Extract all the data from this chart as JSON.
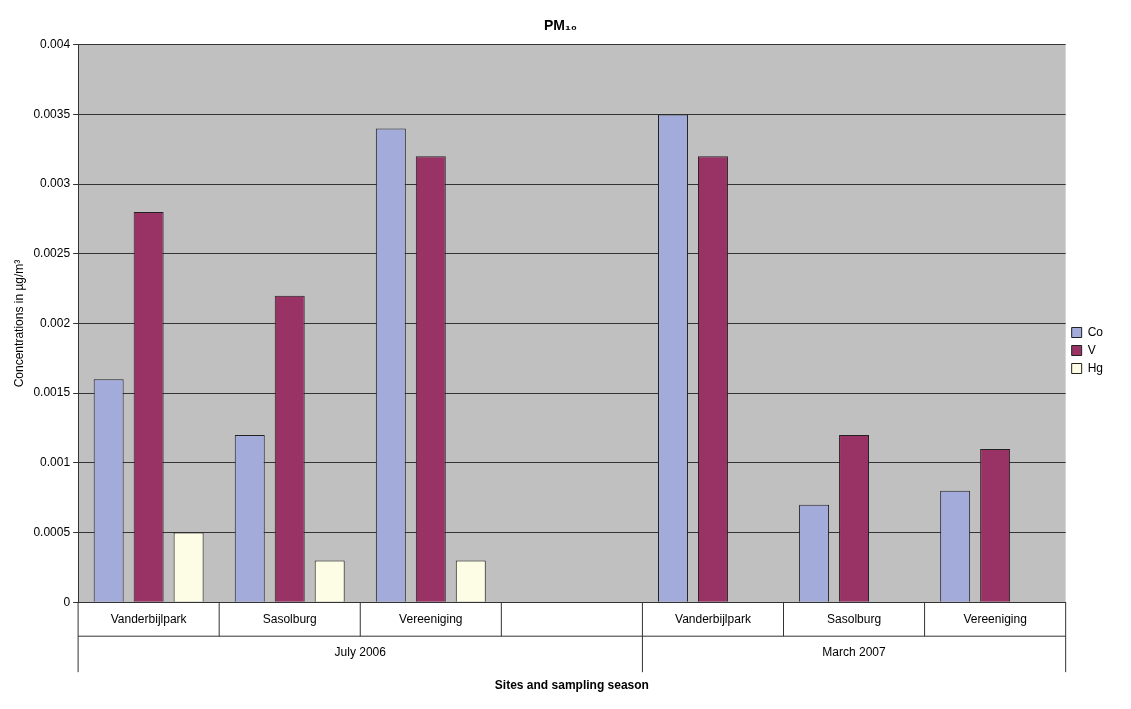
{
  "chart_data": {
    "type": "bar",
    "title": "PM₁₀",
    "xlabel": "Sites and sampling season",
    "ylabel": "Concentrations in µg/m³",
    "categories": [
      "Vanderbijlpark",
      "Sasolburg",
      "Vereeniging",
      null,
      "Vanderbijlpark",
      "Sasolburg",
      "Vereeniging"
    ],
    "series": [
      {
        "name": "Co",
        "color": "#a3abda",
        "values": [
          0.0016,
          0.0012,
          0.0034,
          null,
          0.0035,
          0.0007,
          0.0008
        ]
      },
      {
        "name": "V",
        "color": "#993366",
        "values": [
          0.0028,
          0.0022,
          0.0032,
          null,
          0.0032,
          0.0012,
          0.0011
        ]
      },
      {
        "name": "Hg",
        "color": "#fdfde6",
        "values": [
          0.0005,
          0.0003,
          0.0003,
          null,
          null,
          null,
          null
        ]
      }
    ],
    "annotations": [
      "July 2006",
      "March 2007"
    ],
    "ylim": [
      0,
      0.004
    ],
    "yticks": [
      0,
      0.0005,
      0.001,
      0.0015,
      0.002,
      0.0025,
      0.003,
      0.0035,
      0.004
    ],
    "grid": "y",
    "legend": "right"
  }
}
